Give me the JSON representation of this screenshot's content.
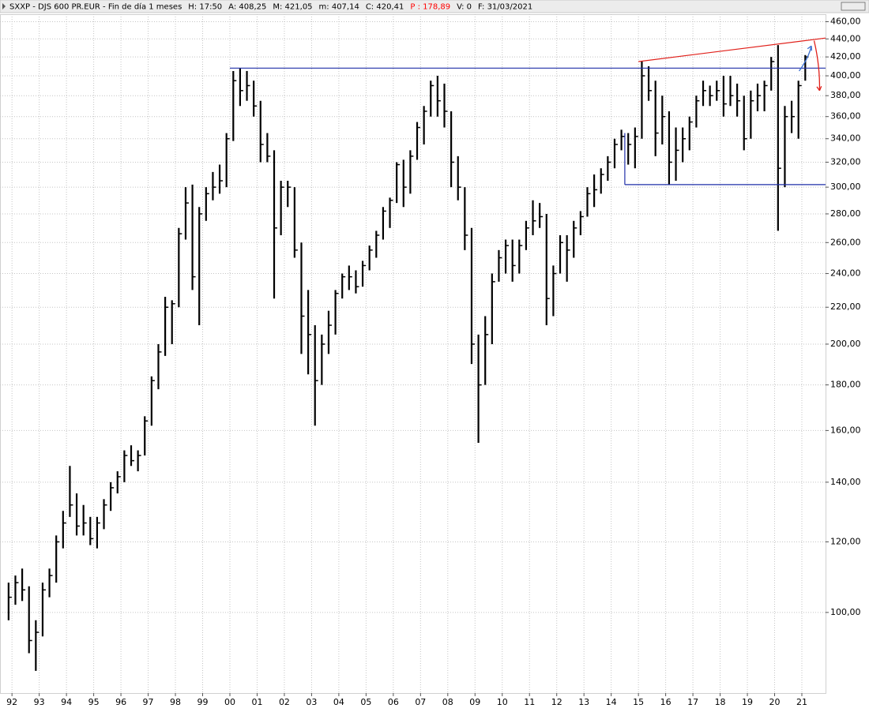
{
  "chart_data": {
    "type": "hlc",
    "header": [
      "SXXP - DJS 600 PR.EUR - Fin de día 1 meses",
      "H: 17:50",
      "A: 408,25",
      "M: 421,05",
      "m: 407,14",
      "C: 420,41",
      "P : 178,89",
      "V: 0",
      "F: 31/03/2021"
    ],
    "header_colors": [
      "#000000",
      "#000000",
      "#000000",
      "#000000",
      "#000000",
      "#000000",
      "#ff0000",
      "#000000",
      "#000000"
    ],
    "log_scale": true,
    "grid": true,
    "color": "#000000",
    "xlim": [
      1991.56,
      2021.87
    ],
    "ylim": [
      81.2,
      469
    ],
    "xticks": [
      {
        "value": 1992,
        "label": "92"
      },
      {
        "value": 1993,
        "label": "93"
      },
      {
        "value": 1994,
        "label": "94"
      },
      {
        "value": 1995,
        "label": "95"
      },
      {
        "value": 1996,
        "label": "96"
      },
      {
        "value": 1997,
        "label": "97"
      },
      {
        "value": 1998,
        "label": "98"
      },
      {
        "value": 1999,
        "label": "99"
      },
      {
        "value": 2000,
        "label": "00"
      },
      {
        "value": 2001,
        "label": "01"
      },
      {
        "value": 2002,
        "label": "02"
      },
      {
        "value": 2003,
        "label": "03"
      },
      {
        "value": 2004,
        "label": "04"
      },
      {
        "value": 2005,
        "label": "05"
      },
      {
        "value": 2006,
        "label": "06"
      },
      {
        "value": 2007,
        "label": "07"
      },
      {
        "value": 2008,
        "label": "08"
      },
      {
        "value": 2009,
        "label": "09"
      },
      {
        "value": 2010,
        "label": "10"
      },
      {
        "value": 2011,
        "label": "11"
      },
      {
        "value": 2012,
        "label": "12"
      },
      {
        "value": 2013,
        "label": "13"
      },
      {
        "value": 2014,
        "label": "14"
      },
      {
        "value": 2015,
        "label": "15"
      },
      {
        "value": 2016,
        "label": "16"
      },
      {
        "value": 2017,
        "label": "17"
      },
      {
        "value": 2018,
        "label": "18"
      },
      {
        "value": 2019,
        "label": "19"
      },
      {
        "value": 2020,
        "label": "20"
      },
      {
        "value": 2021,
        "label": "21"
      }
    ],
    "yticks": [
      {
        "value": 100,
        "label": "100,00"
      },
      {
        "value": 120,
        "label": "120,00"
      },
      {
        "value": 140,
        "label": "140,00"
      },
      {
        "value": 160,
        "label": "160,00"
      },
      {
        "value": 180,
        "label": "180,00"
      },
      {
        "value": 200,
        "label": "200,00"
      },
      {
        "value": 220,
        "label": "220,00"
      },
      {
        "value": 240,
        "label": "240,00"
      },
      {
        "value": 260,
        "label": "260,00"
      },
      {
        "value": 280,
        "label": "280,00"
      },
      {
        "value": 300,
        "label": "300,00"
      },
      {
        "value": 320,
        "label": "320,00"
      },
      {
        "value": 340,
        "label": "340,00"
      },
      {
        "value": 360,
        "label": "360,00"
      },
      {
        "value": 380,
        "label": "380,00"
      },
      {
        "value": 400,
        "label": "400,00"
      },
      {
        "value": 420,
        "label": "420,00"
      },
      {
        "value": 440,
        "label": "440,00"
      },
      {
        "value": 460,
        "label": "460,00"
      }
    ],
    "x": [
      1991.875,
      1992.125,
      1992.375,
      1992.625,
      1992.875,
      1993.125,
      1993.375,
      1993.625,
      1993.875,
      1994.125,
      1994.375,
      1994.625,
      1994.875,
      1995.125,
      1995.375,
      1995.625,
      1995.875,
      1996.125,
      1996.375,
      1996.625,
      1996.875,
      1997.125,
      1997.375,
      1997.625,
      1997.875,
      1998.125,
      1998.375,
      1998.625,
      1998.875,
      1999.125,
      1999.375,
      1999.625,
      1999.875,
      2000.125,
      2000.375,
      2000.625,
      2000.875,
      2001.125,
      2001.375,
      2001.625,
      2001.875,
      2002.125,
      2002.375,
      2002.625,
      2002.875,
      2003.125,
      2003.375,
      2003.625,
      2003.875,
      2004.125,
      2004.375,
      2004.625,
      2004.875,
      2005.125,
      2005.375,
      2005.625,
      2005.875,
      2006.125,
      2006.375,
      2006.625,
      2006.875,
      2007.125,
      2007.375,
      2007.625,
      2007.875,
      2008.125,
      2008.375,
      2008.625,
      2008.875,
      2009.125,
      2009.375,
      2009.625,
      2009.875,
      2010.125,
      2010.375,
      2010.625,
      2010.875,
      2011.125,
      2011.375,
      2011.625,
      2011.875,
      2012.125,
      2012.375,
      2012.625,
      2012.875,
      2013.125,
      2013.375,
      2013.625,
      2013.875,
      2014.125,
      2014.375,
      2014.625,
      2014.875,
      2015.125,
      2015.375,
      2015.625,
      2015.875,
      2016.125,
      2016.375,
      2016.625,
      2016.875,
      2017.125,
      2017.375,
      2017.625,
      2017.875,
      2018.125,
      2018.375,
      2018.625,
      2018.875,
      2019.125,
      2019.375,
      2019.625,
      2019.875,
      2020.125,
      2020.375,
      2020.625,
      2020.875,
      2021.125
    ],
    "high": [
      108,
      110,
      112,
      107,
      98,
      108,
      112,
      122,
      130,
      146,
      136,
      132,
      128,
      128,
      134,
      140,
      144,
      152,
      154,
      152,
      166,
      184,
      200,
      226,
      224,
      270,
      300,
      302,
      285,
      300,
      312,
      318,
      345,
      405,
      408,
      405,
      395,
      375,
      345,
      330,
      305,
      305,
      300,
      260,
      230,
      210,
      205,
      218,
      230,
      240,
      245,
      242,
      248,
      258,
      268,
      285,
      292,
      320,
      322,
      330,
      355,
      370,
      395,
      400,
      392,
      365,
      325,
      300,
      270,
      205,
      215,
      240,
      255,
      262,
      262,
      262,
      275,
      290,
      288,
      280,
      245,
      265,
      265,
      275,
      282,
      300,
      310,
      315,
      325,
      340,
      348,
      345,
      350,
      415,
      410,
      395,
      380,
      365,
      350,
      350,
      360,
      380,
      395,
      390,
      395,
      400,
      400,
      392,
      380,
      385,
      392,
      395,
      420,
      433,
      370,
      375,
      395,
      422
    ],
    "low": [
      98,
      102,
      103,
      90,
      86,
      94,
      104,
      108,
      118,
      128,
      122,
      122,
      119,
      118,
      124,
      130,
      136,
      140,
      146,
      144,
      150,
      162,
      178,
      194,
      200,
      220,
      262,
      230,
      210,
      275,
      290,
      295,
      300,
      338,
      370,
      375,
      360,
      320,
      320,
      225,
      265,
      285,
      250,
      195,
      185,
      162,
      180,
      195,
      205,
      225,
      230,
      228,
      232,
      242,
      250,
      262,
      270,
      288,
      285,
      295,
      322,
      335,
      360,
      360,
      350,
      300,
      290,
      255,
      190,
      155,
      180,
      200,
      235,
      240,
      235,
      240,
      255,
      265,
      270,
      210,
      215,
      240,
      235,
      250,
      265,
      278,
      285,
      295,
      305,
      315,
      330,
      318,
      315,
      340,
      375,
      325,
      335,
      302,
      305,
      320,
      330,
      350,
      370,
      370,
      375,
      360,
      370,
      360,
      330,
      340,
      365,
      365,
      385,
      268,
      300,
      345,
      340,
      395
    ],
    "close": [
      104,
      108,
      106,
      93,
      95,
      106,
      110,
      120,
      126,
      132,
      125,
      126,
      121,
      126,
      132,
      138,
      142,
      150,
      148,
      150,
      164,
      182,
      196,
      220,
      222,
      266,
      288,
      238,
      280,
      295,
      300,
      305,
      340,
      395,
      385,
      390,
      370,
      335,
      325,
      270,
      300,
      300,
      255,
      215,
      205,
      182,
      200,
      210,
      228,
      238,
      238,
      232,
      245,
      255,
      265,
      282,
      290,
      318,
      300,
      325,
      350,
      365,
      390,
      375,
      365,
      320,
      300,
      265,
      200,
      180,
      205,
      235,
      250,
      258,
      245,
      258,
      270,
      275,
      278,
      225,
      240,
      260,
      255,
      270,
      278,
      295,
      298,
      310,
      320,
      335,
      342,
      335,
      342,
      400,
      385,
      345,
      360,
      320,
      330,
      340,
      355,
      375,
      385,
      380,
      385,
      372,
      380,
      375,
      340,
      375,
      380,
      390,
      415,
      315,
      360,
      360,
      390,
      420
    ],
    "lines": [
      {
        "color": "#1f2fa8",
        "x": [
          2000,
          2021.87
        ],
        "y": [
          408,
          408
        ]
      },
      {
        "color": "#1f2fa8",
        "x": [
          2014.5,
          2021.87
        ],
        "y": [
          302,
          302
        ]
      },
      {
        "color": "#1f2fa8",
        "x": [
          2014.5,
          2014.5
        ],
        "y": [
          302,
          345
        ]
      },
      {
        "color": "#e0201a",
        "x": [
          2015,
          2021.87
        ],
        "y": [
          415,
          441
        ]
      }
    ],
    "arrows": [
      {
        "color": "#3a6fd0",
        "x": [
          2020.9,
          2021.35
        ],
        "y": [
          405,
          432
        ]
      },
      {
        "color": "#e0201a",
        "x": [
          2021.45,
          2021.65
        ],
        "y": [
          438,
          385
        ]
      }
    ]
  }
}
